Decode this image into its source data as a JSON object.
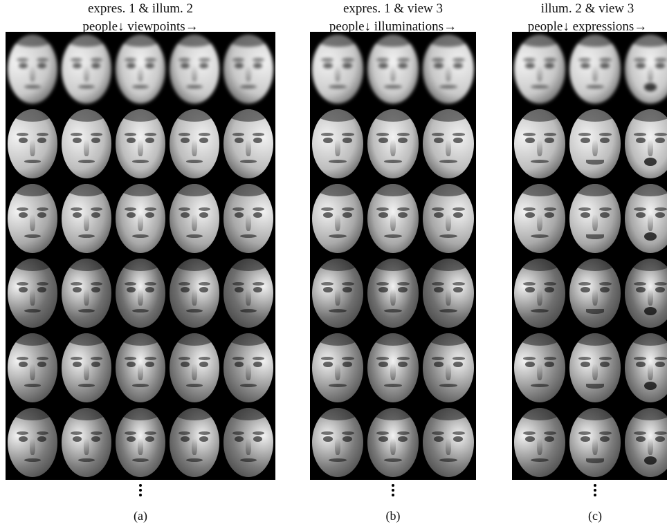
{
  "panels": [
    {
      "id": "a",
      "title_line1": "expres. 1 & illum. 2",
      "title_line2": "people↓ viewpoints→",
      "caption": "(a)",
      "columns": 5,
      "rows": 6,
      "mouths": [
        [
          "n",
          "n",
          "n",
          "n",
          "n"
        ],
        [
          "n",
          "n",
          "n",
          "n",
          "n"
        ],
        [
          "n",
          "n",
          "n",
          "n",
          "n"
        ],
        [
          "n",
          "n",
          "n",
          "n",
          "n"
        ],
        [
          "n",
          "n",
          "n",
          "n",
          "n"
        ],
        [
          "n",
          "n",
          "n",
          "n",
          "n"
        ]
      ]
    },
    {
      "id": "b",
      "title_line1": "expres. 1 & view 3",
      "title_line2": "people↓ illuminations→",
      "caption": "(b)",
      "columns": 3,
      "rows": 6,
      "mouths": [
        [
          "n",
          "n",
          "n"
        ],
        [
          "n",
          "n",
          "n"
        ],
        [
          "n",
          "n",
          "n"
        ],
        [
          "n",
          "n",
          "n"
        ],
        [
          "n",
          "n",
          "n"
        ],
        [
          "n",
          "n",
          "n"
        ]
      ]
    },
    {
      "id": "c",
      "title_line1": "illum. 2 & view 3",
      "title_line2": "people↓ expressions→",
      "caption": "(c)",
      "columns": 3,
      "rows": 6,
      "mouths": [
        [
          "n",
          "n",
          "o"
        ],
        [
          "n",
          "s",
          "o"
        ],
        [
          "n",
          "s",
          "o"
        ],
        [
          "n",
          "s",
          "o"
        ],
        [
          "n",
          "s",
          "o"
        ],
        [
          "n",
          "s",
          "o"
        ]
      ]
    }
  ],
  "row_tones": [
    "#c9c9c9",
    "#bdbdbd",
    "#a9a9a9",
    "#6f6f6f",
    "#868686",
    "#7a7a7a"
  ],
  "colors": {
    "background": "#ffffff",
    "grid_background": "#000000",
    "text": "#111111"
  }
}
